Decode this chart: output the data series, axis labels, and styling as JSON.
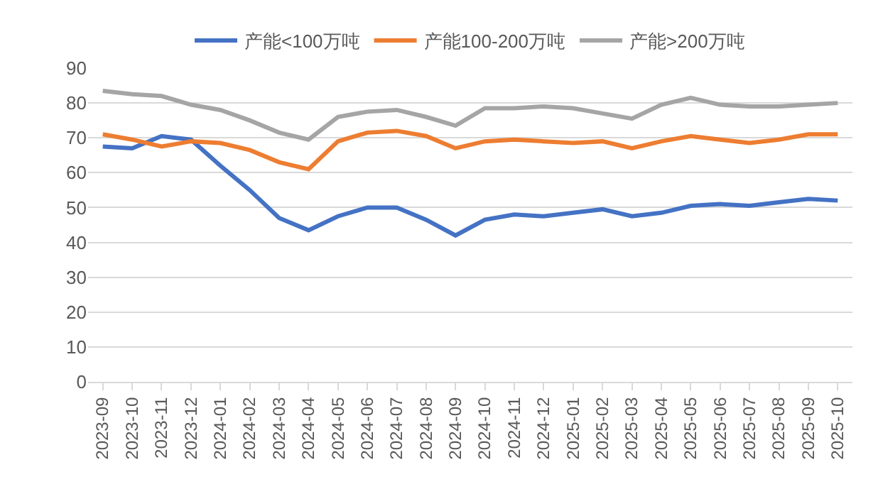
{
  "chart_data": {
    "type": "line",
    "categories": [
      "2023-09",
      "2023-10",
      "2023-11",
      "2023-12",
      "2024-01",
      "2024-02",
      "2024-03",
      "2024-04",
      "2024-05",
      "2024-06",
      "2024-07",
      "2024-08",
      "2024-09",
      "2024-10",
      "2024-11",
      "2024-12",
      "2025-01",
      "2025-02",
      "2025-03",
      "2025-04",
      "2025-05",
      "2025-06",
      "2025-07",
      "2025-08",
      "2025-09",
      "2025-10"
    ],
    "series": [
      {
        "name": "产能<100万吨",
        "color": "#4472c4",
        "values": [
          67.5,
          67,
          70.5,
          69.5,
          62,
          55,
          47,
          43.5,
          47.5,
          50,
          50,
          46.5,
          42,
          46.5,
          48,
          47.5,
          48.5,
          49.5,
          47.5,
          48.5,
          50.5,
          51,
          50.5,
          51.5,
          52.5,
          52
        ]
      },
      {
        "name": "产能100-200万吨",
        "color": "#ed7d31",
        "values": [
          71,
          69.5,
          67.5,
          69,
          68.5,
          66.5,
          63,
          61,
          69,
          71.5,
          72,
          70.5,
          67,
          69,
          69.5,
          69,
          68.5,
          69,
          67,
          69,
          70.5,
          69.5,
          68.5,
          69.5,
          71,
          71
        ]
      },
      {
        "name": "产能>200万吨",
        "color": "#a5a5a5",
        "values": [
          83.5,
          82.5,
          82,
          79.5,
          78,
          75,
          71.5,
          69.5,
          76,
          77.5,
          78,
          76,
          73.5,
          78.5,
          78.5,
          79,
          78.5,
          77,
          75.5,
          79.5,
          81.5,
          79.5,
          79,
          79,
          79.5,
          80
        ]
      }
    ],
    "ylim": [
      0,
      90
    ],
    "yticks": [
      0,
      10,
      20,
      30,
      40,
      50,
      60,
      70,
      80,
      90
    ],
    "grid": "y",
    "legend": "top",
    "marker": "none",
    "line_style": "solid"
  }
}
